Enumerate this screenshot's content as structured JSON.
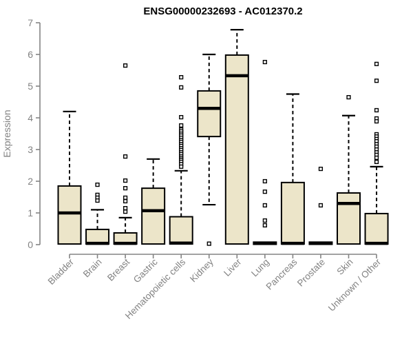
{
  "page": {
    "background": "#ffffff"
  },
  "chart_data": {
    "type": "boxplot",
    "title": "ENSG00000232693 - AC012370.2",
    "ylabel": "Expression",
    "xlabel": "",
    "ylim": [
      0,
      7
    ],
    "yticks": [
      "0",
      "1",
      "2",
      "3",
      "4",
      "5",
      "6",
      "7"
    ],
    "grid": false,
    "legend": null,
    "colors": {
      "box_fill": "#ece5c9",
      "box_stroke": "#000000",
      "median": "#000000",
      "whisker": "#000000",
      "outlier_stroke": "#000000",
      "outlier_fill": "#ffffff",
      "axis": "#838383",
      "tick_label": "#828282",
      "title": "#000000"
    },
    "categories": [
      "Bladder",
      "Brain",
      "Breast",
      "Gastric",
      "Hematopoietic cells",
      "Kidney",
      "Liver",
      "Lung",
      "Pancreas",
      "Prostate",
      "Skin",
      "Unknown / Other"
    ],
    "boxes": [
      {
        "category": "Bladder",
        "whisker_low": 0.02,
        "q1": 0.02,
        "median": 1.0,
        "q3": 1.85,
        "whisker_high": 4.2,
        "outliers": []
      },
      {
        "category": "Brain",
        "whisker_low": 0.02,
        "q1": 0.02,
        "median": 0.04,
        "q3": 0.48,
        "whisker_high": 1.1,
        "outliers": [
          1.89,
          1.57,
          1.48,
          1.39
        ]
      },
      {
        "category": "Breast",
        "whisker_low": 0.02,
        "q1": 0.02,
        "median": 0.04,
        "q3": 0.37,
        "whisker_high": 0.85,
        "outliers": [
          5.65,
          2.78,
          2.02,
          1.78,
          1.48,
          1.37,
          1.15,
          1.04
        ]
      },
      {
        "category": "Gastric",
        "whisker_low": 0.02,
        "q1": 0.02,
        "median": 1.07,
        "q3": 1.78,
        "whisker_high": 2.7,
        "outliers": []
      },
      {
        "category": "Hematopoietic cells",
        "whisker_low": 0.02,
        "q1": 0.02,
        "median": 0.05,
        "q3": 0.88,
        "whisker_high": 2.33,
        "outliers": [
          5.28,
          4.96,
          4.02,
          3.76,
          3.63,
          3.57,
          3.5,
          3.44,
          3.37,
          3.3,
          3.24,
          3.17,
          3.11,
          3.04,
          2.98,
          2.91,
          2.85,
          2.78,
          2.72,
          2.67,
          2.61,
          2.54,
          2.46
        ]
      },
      {
        "category": "Kidney",
        "whisker_low": 1.26,
        "q1": 3.41,
        "median": 4.3,
        "q3": 4.85,
        "whisker_high": 6.0,
        "outliers": [
          0.03
        ]
      },
      {
        "category": "Liver",
        "whisker_low": 0.02,
        "q1": 0.02,
        "median": 5.33,
        "q3": 5.98,
        "whisker_high": 6.78,
        "outliers": []
      },
      {
        "category": "Lung",
        "whisker_low": 0.01,
        "q1": 0.01,
        "median": 0.04,
        "q3": 0.08,
        "whisker_high": 0.08,
        "outliers": [
          5.76,
          2.0,
          1.67,
          1.24,
          0.76,
          0.61
        ]
      },
      {
        "category": "Pancreas",
        "whisker_low": 0.02,
        "q1": 0.02,
        "median": 0.04,
        "q3": 1.96,
        "whisker_high": 4.75,
        "outliers": []
      },
      {
        "category": "Prostate",
        "whisker_low": 0.01,
        "q1": 0.01,
        "median": 0.04,
        "q3": 0.08,
        "whisker_high": 0.08,
        "outliers": [
          2.39,
          1.24
        ]
      },
      {
        "category": "Skin",
        "whisker_low": 0.02,
        "q1": 0.02,
        "median": 1.3,
        "q3": 1.63,
        "whisker_high": 4.07,
        "outliers": [
          4.65
        ]
      },
      {
        "category": "Unknown / Other",
        "whisker_low": 0.02,
        "q1": 0.02,
        "median": 0.04,
        "q3": 0.98,
        "whisker_high": 2.46,
        "outliers": [
          5.7,
          5.17,
          4.24,
          3.98,
          3.89,
          3.48,
          3.41,
          3.33,
          3.26,
          3.17,
          3.09,
          3.0,
          2.91,
          2.83,
          2.74,
          2.61
        ]
      }
    ]
  }
}
